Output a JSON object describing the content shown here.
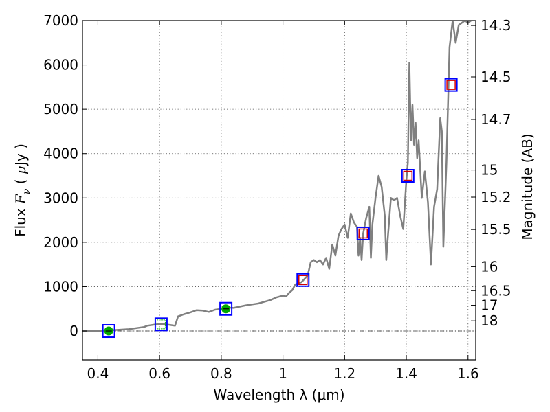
{
  "chart_data": {
    "type": "line",
    "title": "",
    "xlabel": "Wavelength  λ (μm)",
    "ylabel": "Flux  F_ν ( μJy )",
    "ylabel_right": "Magnitude (AB)",
    "xlim": [
      0.35,
      1.625
    ],
    "ylim": [
      -650,
      7000
    ],
    "x_ticks": [
      {
        "value": 0.4,
        "label": "0.4"
      },
      {
        "value": 0.6,
        "label": "0.6"
      },
      {
        "value": 0.8,
        "label": "0.8"
      },
      {
        "value": 1.0,
        "label": "1"
      },
      {
        "value": 1.2,
        "label": "1.2"
      },
      {
        "value": 1.4,
        "label": "1.4"
      },
      {
        "value": 1.6,
        "label": "1.6"
      }
    ],
    "y_ticks": [
      {
        "value": 0,
        "label": "0"
      },
      {
        "value": 1000,
        "label": "1000"
      },
      {
        "value": 2000,
        "label": "2000"
      },
      {
        "value": 3000,
        "label": "3000"
      },
      {
        "value": 4000,
        "label": "4000"
      },
      {
        "value": 5000,
        "label": "5000"
      },
      {
        "value": 6000,
        "label": "6000"
      },
      {
        "value": 7000,
        "label": "7000"
      }
    ],
    "right_ticks": [
      {
        "label": "14.3",
        "flux": 6890
      },
      {
        "label": "14.5",
        "flux": 5730
      },
      {
        "label": "14.7",
        "flux": 4770
      },
      {
        "label": "15",
        "flux": 3630
      },
      {
        "label": "15.2",
        "flux": 3020
      },
      {
        "label": "15.5",
        "flux": 2290
      },
      {
        "label": "16",
        "flux": 1450
      },
      {
        "label": "16.5",
        "flux": 910
      },
      {
        "label": "17",
        "flux": 580
      },
      {
        "label": "18",
        "flux": 230
      }
    ],
    "grid": true,
    "zero_line": true,
    "series": [
      {
        "kind": "spectrum",
        "color": "#808080",
        "x": [
          0.35,
          0.4,
          0.45,
          0.5,
          0.55,
          0.56,
          0.58,
          0.6,
          0.62,
          0.64,
          0.65,
          0.66,
          0.68,
          0.7,
          0.72,
          0.74,
          0.76,
          0.78,
          0.8,
          0.82,
          0.84,
          0.86,
          0.88,
          0.9,
          0.92,
          0.94,
          0.96,
          0.98,
          1.0,
          1.01,
          1.02,
          1.03,
          1.04,
          1.06,
          1.08,
          1.09,
          1.1,
          1.11,
          1.12,
          1.13,
          1.14,
          1.15,
          1.16,
          1.17,
          1.18,
          1.19,
          1.2,
          1.21,
          1.22,
          1.23,
          1.24,
          1.245,
          1.25,
          1.255,
          1.26,
          1.27,
          1.28,
          1.285,
          1.29,
          1.3,
          1.31,
          1.32,
          1.33,
          1.335,
          1.34,
          1.35,
          1.36,
          1.37,
          1.38,
          1.39,
          1.4,
          1.405,
          1.41,
          1.415,
          1.42,
          1.425,
          1.43,
          1.435,
          1.44,
          1.45,
          1.46,
          1.47,
          1.48,
          1.49,
          1.5,
          1.51,
          1.515,
          1.52,
          1.53,
          1.54,
          1.55,
          1.56,
          1.57,
          1.58,
          1.59,
          1.6,
          1.61,
          1.62
        ],
        "y": [
          0,
          0,
          20,
          40,
          90,
          120,
          140,
          160,
          150,
          130,
          120,
          330,
          380,
          420,
          470,
          460,
          430,
          480,
          500,
          530,
          520,
          550,
          580,
          600,
          620,
          660,
          700,
          760,
          800,
          780,
          860,
          920,
          1050,
          1100,
          1250,
          1550,
          1600,
          1550,
          1600,
          1500,
          1650,
          1400,
          1950,
          1700,
          2150,
          2300,
          2400,
          2100,
          2650,
          2450,
          2350,
          1700,
          2100,
          1600,
          2200,
          2550,
          2800,
          1650,
          2400,
          3000,
          3500,
          3250,
          2600,
          1600,
          2100,
          3000,
          2950,
          3000,
          2600,
          2300,
          3400,
          3800,
          6050,
          4300,
          5100,
          4200,
          4700,
          3900,
          4300,
          3000,
          3600,
          2900,
          1500,
          2800,
          3200,
          4800,
          4500,
          1900,
          3800,
          6400,
          7000,
          6500,
          6900,
          6950,
          7000,
          6950,
          7000,
          7050
        ]
      },
      {
        "kind": "markers",
        "name": "",
        "x": [
          0.435,
          0.605,
          0.815,
          1.065,
          1.26,
          1.405,
          1.545
        ],
        "y": [
          0,
          150,
          500,
          1150,
          2200,
          3500,
          5550
        ],
        "outer_color": "#0000ff",
        "inner_color": "#d40000",
        "green_inner_color": "#00aa00",
        "inner_style": [
          "green-dot",
          "green-open",
          "green-dot",
          "red-open",
          "red-open",
          "red-open",
          "red-open"
        ]
      }
    ]
  },
  "colors": {
    "spectrum": "#808080",
    "outer_box": "#0000ff",
    "red_box": "#d40000",
    "green": "#00aa00",
    "axes": "#000000"
  }
}
